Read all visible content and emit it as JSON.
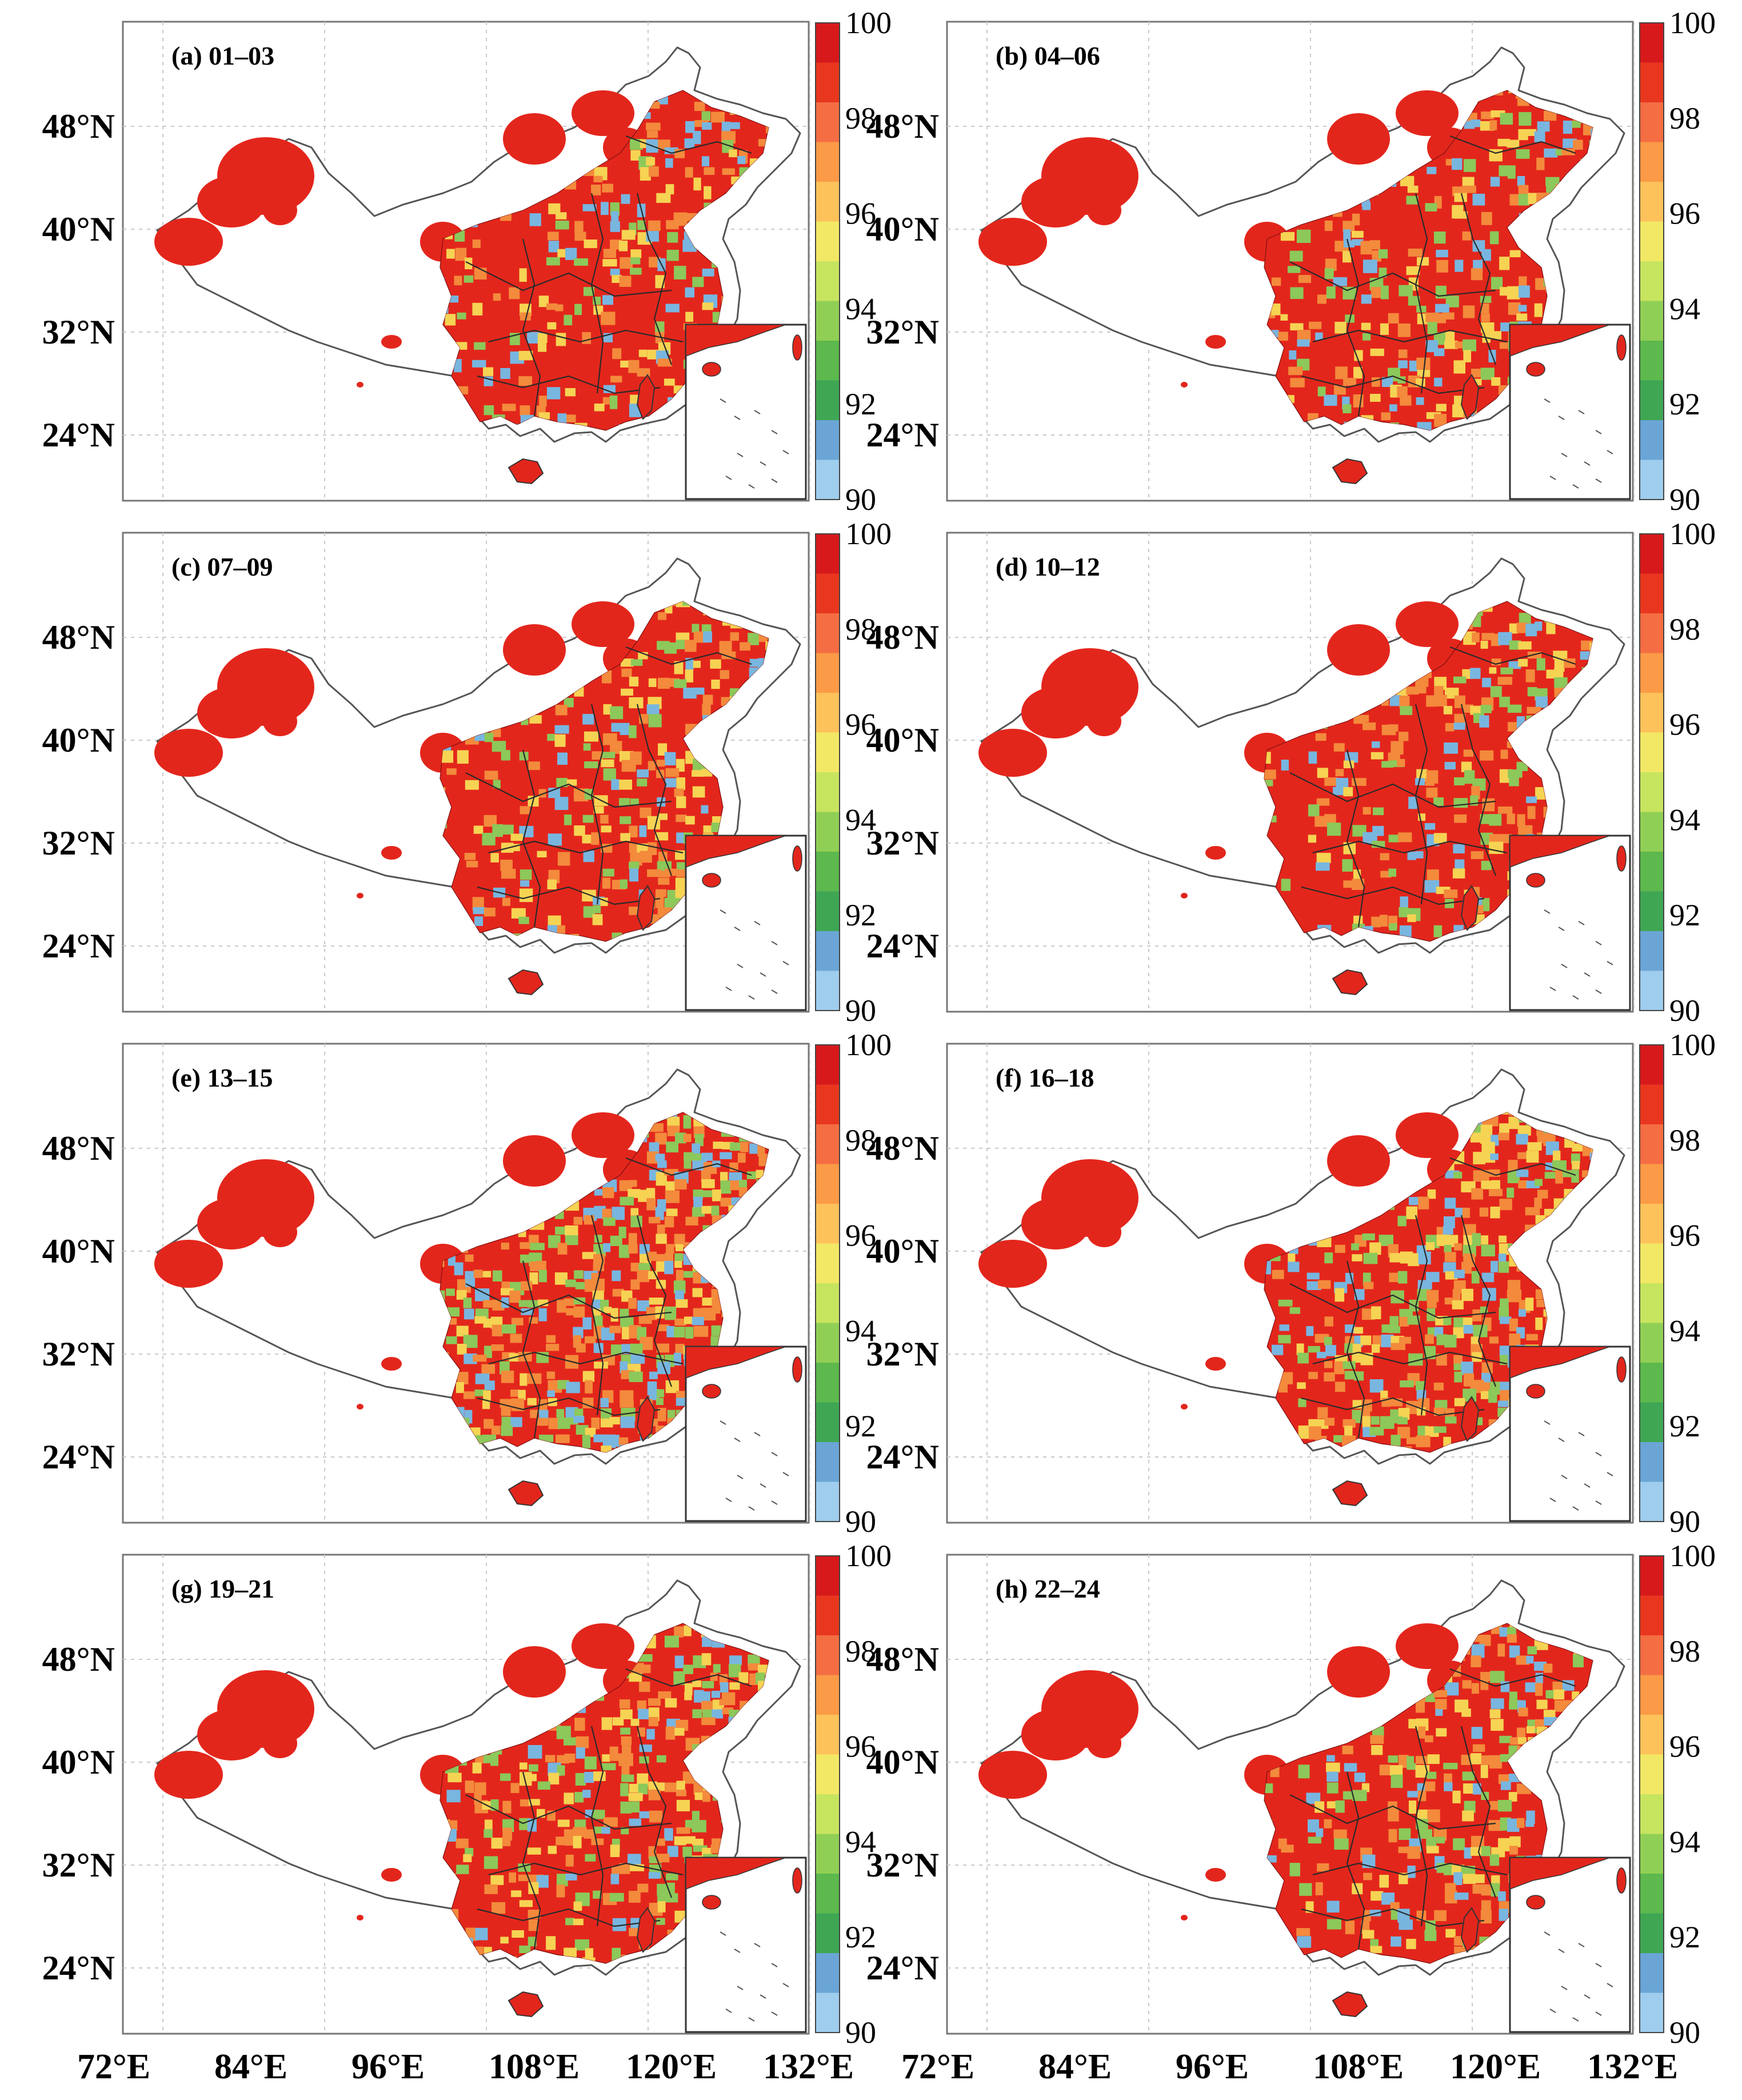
{
  "map": {
    "lat_labels": [
      "48°N",
      "40°N",
      "32°N",
      "24°N"
    ],
    "lon_labels": [
      "72°E",
      "84°E",
      "96°E",
      "108°E",
      "120°E",
      "132°E"
    ],
    "colorbar": {
      "ticks": [
        "100",
        "98",
        "96",
        "94",
        "92",
        "90"
      ],
      "colors": [
        "#d7191c",
        "#e9371f",
        "#f46d43",
        "#fb9a47",
        "#fdc25a",
        "#f2e865",
        "#c7e45f",
        "#90cf55",
        "#5db84e",
        "#3fa653",
        "#6aa5d6",
        "#9fcdee"
      ]
    },
    "colors": {
      "uniform": "#e3261c",
      "orange": "#f38a3c",
      "yellow": "#f6d353",
      "green": "#8cc85a",
      "blue": "#78b6e0",
      "border": "#555555"
    },
    "panels": [
      {
        "label": "(a) 01–03",
        "mix": [
          0.72,
          0.1,
          0.06,
          0.06,
          0.06
        ]
      },
      {
        "label": "(b) 04–06",
        "mix": [
          0.7,
          0.11,
          0.07,
          0.06,
          0.06
        ]
      },
      {
        "label": "(c) 07–09",
        "mix": [
          0.66,
          0.12,
          0.08,
          0.08,
          0.06
        ]
      },
      {
        "label": "(d) 10–12",
        "mix": [
          0.7,
          0.11,
          0.07,
          0.07,
          0.05
        ]
      },
      {
        "label": "(e) 13–15",
        "mix": [
          0.48,
          0.17,
          0.12,
          0.14,
          0.09
        ]
      },
      {
        "label": "(f) 16–18",
        "mix": [
          0.55,
          0.15,
          0.11,
          0.11,
          0.08
        ]
      },
      {
        "label": "(g) 19–21",
        "mix": [
          0.6,
          0.14,
          0.09,
          0.1,
          0.07
        ]
      },
      {
        "label": "(h) 22–24",
        "mix": [
          0.65,
          0.12,
          0.08,
          0.09,
          0.06
        ]
      }
    ]
  }
}
